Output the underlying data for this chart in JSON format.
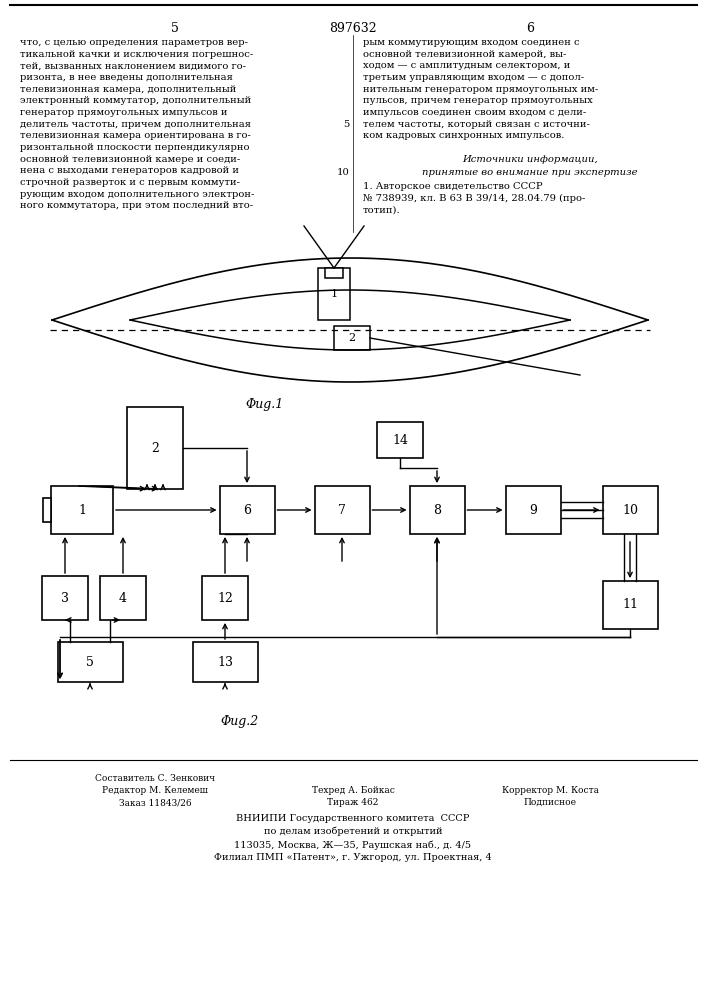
{
  "patent_number": "897632",
  "col_left_num": "5",
  "col_right_num": "6",
  "text_left": "что, с целью определения параметров вер-\nтикальной качки и исключения погрешнос-\nтей, вызванных наклонением видимого го-\nризонта, в нее введены дополнительная\nтелевизионная камера, дополнительный\nэлектронный коммутатор, дополнительный\nгенератор прямоугольных импульсов и\nделитель частоты, причем дополнительная\nтелевизионная камера ориентирована в го-\nризонтальной плоскости перпендикулярно\nосновной телевизионной камере и соеди-\nнена с выходами генераторов кадровой и\nстрочной разверток и с первым коммути-\nрующим входом дополнительного электрон-\nного коммутатора, при этом последний вто-",
  "text_right": "рым коммутирующим входом соединен с\nосновной телевизионной камерой, вы-\nходом — с амплитудным селектором, и\nтретьим управляющим входом — с допол-\nнительным генератором прямоугольных им-\nпульсов, причем генератор прямоугольных\nимпульсов соединен своим входом с дели-\nтелем частоты, который связан с источни-\nком кадровых синхронных импульсов.",
  "line_num_right": "5",
  "line_num_right2": "10",
  "sources_header": "Источники информации,",
  "sources_text": "принятые во внимание при экспертизе",
  "source1": "1. Авторское свидетельство СССР\n№ 738939, кл. В 63 В 39/14, 28.04.79 (про-\nтотип).",
  "fig1_label": "Φug.1",
  "fig2_label": "Φug.2",
  "footer_left1": "Редактор М. Келемеш",
  "footer_left2": "Заказ 11843/26",
  "footer_center1": "Составитель С. Зенкович",
  "footer_center2": "Техред А. Бойкас",
  "footer_center3": "Тираж 462",
  "footer_right1": "Корректор М. Коста",
  "footer_right2": "Подписное",
  "footer_vniipи": "ВНИИПИ Государственного комитета  СССР",
  "footer_po": "по делам изобретений и открытий",
  "footer_addr": "113035, Москва, Ж—35, Раушская наб., д. 4/5",
  "footer_filial": "Филиал ПМП «Патент», г. Ужгород, ул. Проектная, 4",
  "bg_color": "#ffffff",
  "text_color": "#000000"
}
